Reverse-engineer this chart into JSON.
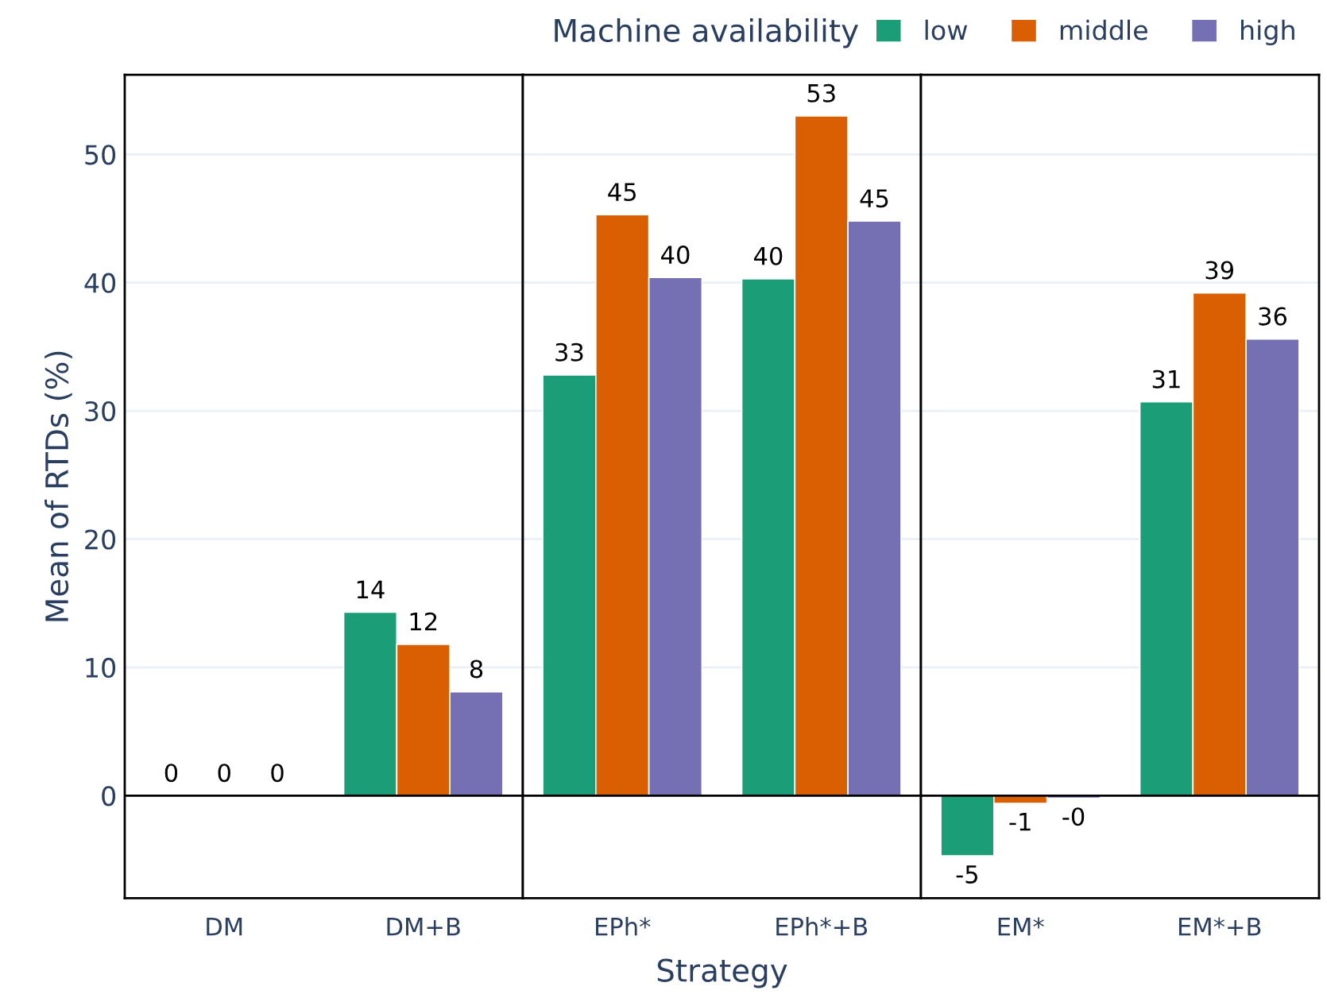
{
  "chart_data": [
    {
      "type": "bar",
      "ylabel": "Mean of RTDs (%)",
      "categories": [
        "DM",
        "DM+B"
      ],
      "ylim": [
        -8,
        56.2
      ],
      "yticks": [
        0,
        10,
        20,
        30,
        40,
        50
      ],
      "grid": "y",
      "legend": "top right",
      "legend_title": "Machine availability",
      "series": [
        {
          "name": "low",
          "color": "#1b9e77",
          "values": [
            0,
            14.3
          ],
          "value_labels": [
            "0",
            "14"
          ]
        },
        {
          "name": "middle",
          "color": "#d95f02",
          "values": [
            0,
            11.8
          ],
          "value_labels": [
            "0",
            "12"
          ]
        },
        {
          "name": "high",
          "color": "#7570b3",
          "values": [
            0,
            8.1
          ],
          "value_labels": [
            "0",
            "8"
          ]
        }
      ],
      "ref_lines": [
        {
          "axis": "y",
          "value": 0,
          "color": "#000000"
        }
      ]
    },
    {
      "type": "bar",
      "xlabel": "Strategy",
      "categories": [
        "EPh*",
        "EPh*+B"
      ],
      "ylim": [
        -8,
        56.2
      ],
      "yticks": [
        0,
        10,
        20,
        30,
        40,
        50
      ],
      "grid": "y",
      "tick_labels": "x",
      "series": [
        {
          "color": "#1b9e77",
          "values": [
            32.8,
            40.3
          ],
          "value_labels": [
            "33",
            "40"
          ]
        },
        {
          "color": "#d95f02",
          "values": [
            45.3,
            53.0
          ],
          "value_labels": [
            "45",
            "53"
          ]
        },
        {
          "color": "#7570b3",
          "values": [
            40.4,
            44.8
          ],
          "value_labels": [
            "40",
            "45"
          ]
        }
      ],
      "ref_lines": [
        {
          "axis": "y",
          "value": 0,
          "color": "#000000"
        }
      ]
    },
    {
      "type": "bar",
      "categories": [
        "EM*",
        "EM*+B"
      ],
      "ylim": [
        -8,
        56.2
      ],
      "yticks": [
        0,
        10,
        20,
        30,
        40,
        50
      ],
      "grid": "y",
      "tick_labels": "x",
      "series": [
        {
          "color": "#1b9e77",
          "values": [
            -4.7,
            30.7
          ],
          "value_labels": [
            "-5",
            "31"
          ]
        },
        {
          "color": "#d95f02",
          "values": [
            -0.6,
            39.2
          ],
          "value_labels": [
            "-1",
            "39"
          ]
        },
        {
          "color": "#7570b3",
          "values": [
            -0.2,
            35.6
          ],
          "value_labels": [
            "-0",
            "36"
          ]
        }
      ],
      "ref_lines": [
        {
          "axis": "y",
          "value": 0,
          "color": "#000000"
        }
      ]
    }
  ]
}
